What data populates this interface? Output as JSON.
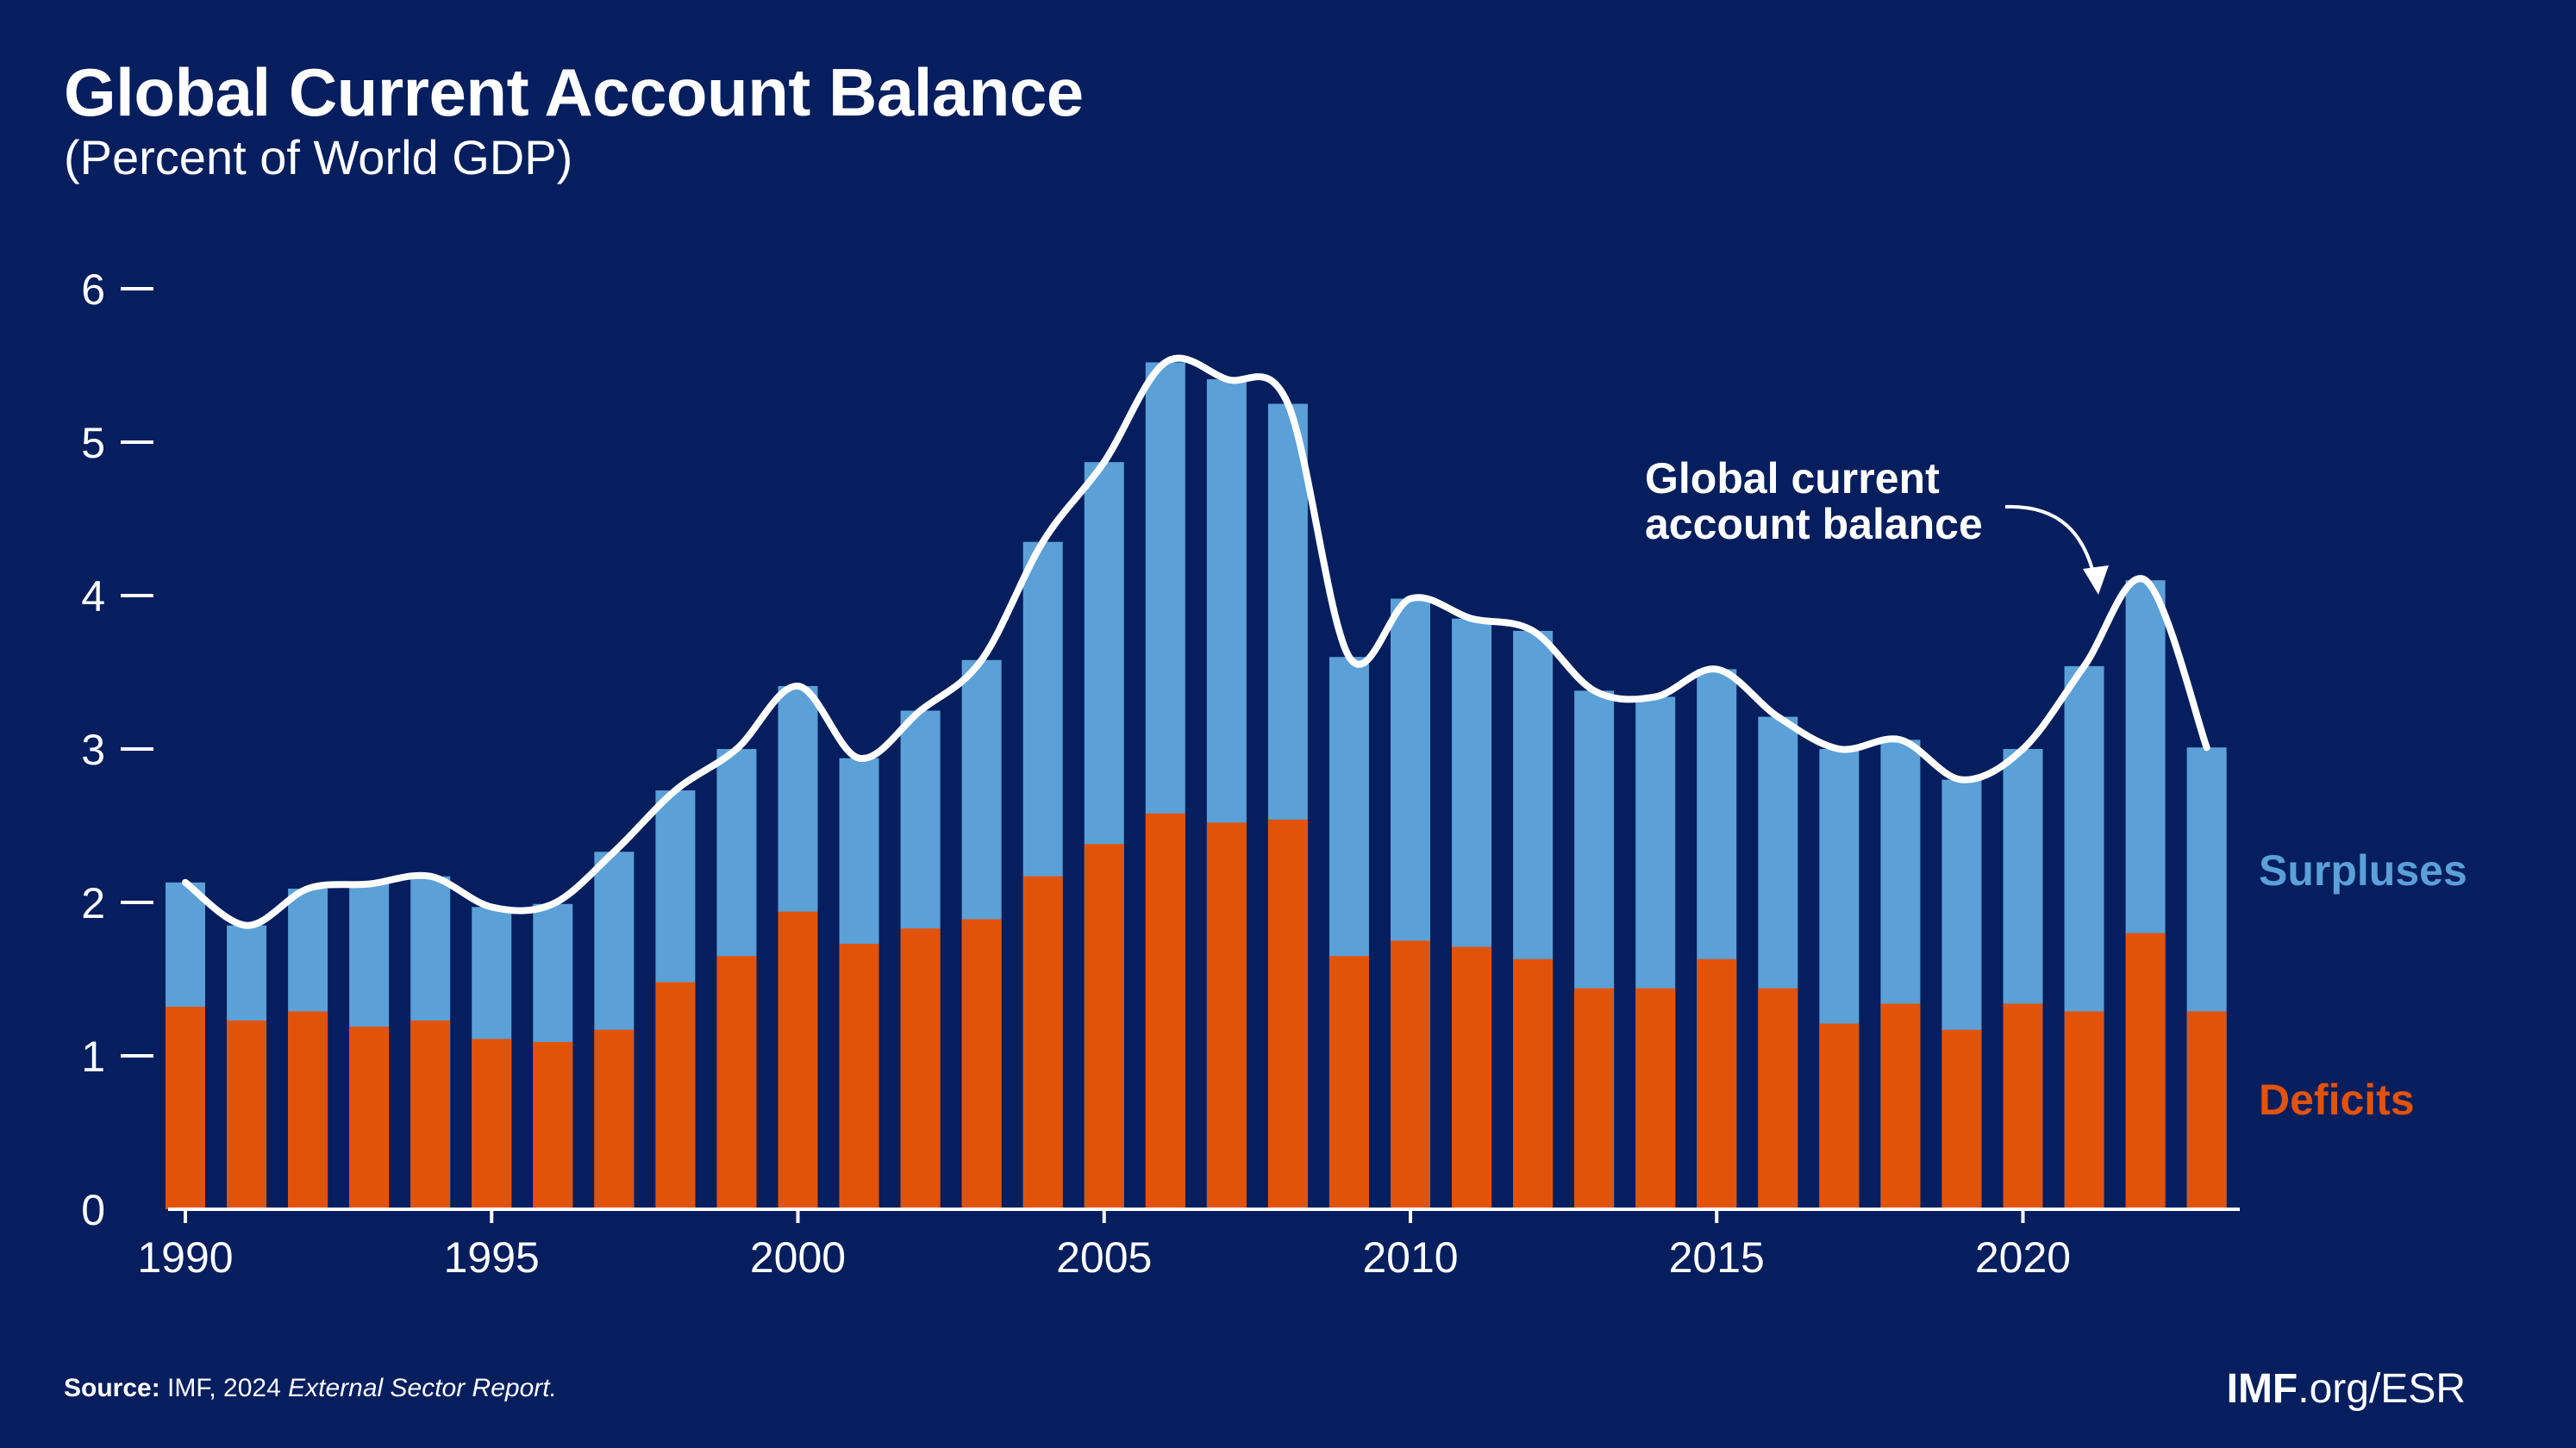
{
  "header": {
    "title": "Global Current Account Balance",
    "subtitle": "(Percent of World GDP)"
  },
  "footer": {
    "source_label": "Source:",
    "source_text": "IMF, 2024",
    "source_report": "External Sector Report.",
    "brand_bold": "IMF",
    "brand_rest": ".org/ESR"
  },
  "colors": {
    "background": "#041e5e",
    "surplus": "#5ba0d6",
    "deficit": "#e2530a",
    "line": "#ffffff"
  },
  "chart_data": {
    "type": "bar",
    "title": "Global Current Account Balance",
    "subtitle": "(Percent of World GDP)",
    "xlabel": "",
    "ylabel": "",
    "ylim": [
      0,
      6
    ],
    "yticks": [
      0,
      1,
      2,
      3,
      4,
      5,
      6
    ],
    "xticks": [
      1990,
      1995,
      2000,
      2005,
      2010,
      2015,
      2020
    ],
    "x": [
      1990,
      1991,
      1992,
      1993,
      1994,
      1995,
      1996,
      1997,
      1998,
      1999,
      2000,
      2001,
      2002,
      2003,
      2004,
      2005,
      2006,
      2007,
      2008,
      2009,
      2010,
      2011,
      2012,
      2013,
      2014,
      2015,
      2016,
      2017,
      2018,
      2019,
      2020,
      2021,
      2022,
      2023
    ],
    "series": [
      {
        "name": "Surpluses",
        "values": [
          2.13,
          1.85,
          2.09,
          2.12,
          2.17,
          1.97,
          1.99,
          2.33,
          2.73,
          3.0,
          3.41,
          2.94,
          3.25,
          3.58,
          4.35,
          4.87,
          5.52,
          5.41,
          5.25,
          3.6,
          3.98,
          3.85,
          3.77,
          3.38,
          3.34,
          3.52,
          3.21,
          3.0,
          3.06,
          2.8,
          3.0,
          3.54,
          4.1,
          3.01
        ]
      },
      {
        "name": "Deficits",
        "values": [
          1.32,
          1.23,
          1.29,
          1.19,
          1.23,
          1.11,
          1.09,
          1.17,
          1.48,
          1.65,
          1.94,
          1.73,
          1.83,
          1.89,
          2.17,
          2.38,
          2.58,
          2.52,
          2.54,
          1.65,
          1.75,
          1.71,
          1.63,
          1.44,
          1.44,
          1.63,
          1.44,
          1.21,
          1.34,
          1.17,
          1.34,
          1.29,
          1.8,
          1.29
        ]
      },
      {
        "name": "Global current account balance",
        "values": [
          2.13,
          1.85,
          2.09,
          2.12,
          2.17,
          1.97,
          1.99,
          2.33,
          2.73,
          3.0,
          3.41,
          2.94,
          3.25,
          3.58,
          4.35,
          4.87,
          5.52,
          5.41,
          5.25,
          3.6,
          3.98,
          3.85,
          3.77,
          3.38,
          3.34,
          3.52,
          3.21,
          3.0,
          3.06,
          2.8,
          3.0,
          3.54,
          4.1,
          3.01
        ]
      }
    ],
    "legend_labels": {
      "surplus": "Surpluses",
      "deficit": "Deficits"
    },
    "annotation": {
      "line1": "Global current",
      "line2": "account balance",
      "points_to_year": 2022
    }
  }
}
